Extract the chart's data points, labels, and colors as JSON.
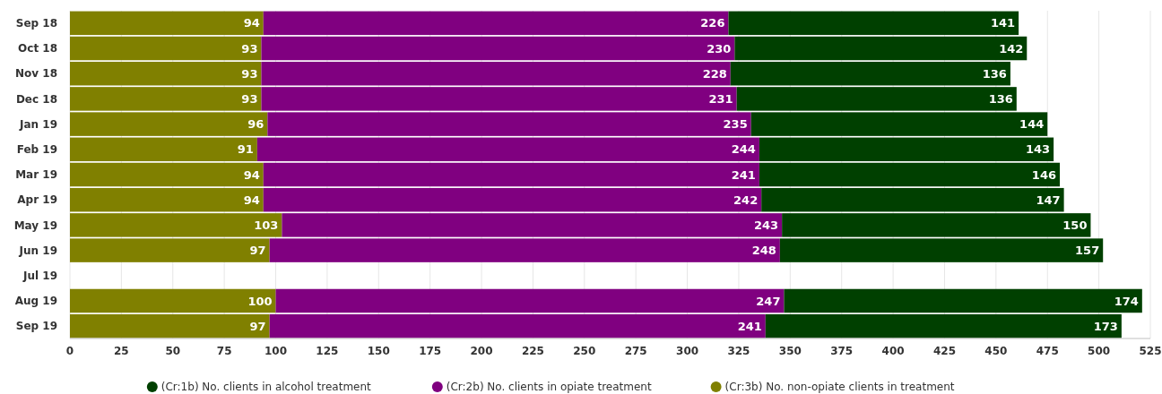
{
  "chart_data": {
    "type": "bar",
    "orientation": "horizontal",
    "stacked": true,
    "data_labels": true,
    "grid": "x",
    "legend": "bottom",
    "categories": [
      "Sep 18",
      "Oct 18",
      "Nov 18",
      "Dec 18",
      "Jan 19",
      "Feb 19",
      "Mar 19",
      "Apr 19",
      "May 19",
      "Jun 19",
      "Jul 19",
      "Aug 19",
      "Sep 19"
    ],
    "xlim": [
      0,
      525
    ],
    "xticks": [
      0,
      25,
      50,
      75,
      100,
      125,
      150,
      175,
      200,
      225,
      250,
      275,
      300,
      325,
      350,
      375,
      400,
      425,
      450,
      475,
      500,
      525
    ],
    "series": [
      {
        "name": "(Cr:3b) No. non-opiate clients in treatment",
        "color": "#808000",
        "values": [
          94,
          93,
          93,
          93,
          96,
          91,
          94,
          94,
          103,
          97,
          null,
          100,
          97
        ]
      },
      {
        "name": "(Cr:2b) No. clients in opiate treatment",
        "color": "#800080",
        "values": [
          226,
          230,
          228,
          231,
          235,
          244,
          241,
          242,
          243,
          248,
          null,
          247,
          241
        ]
      },
      {
        "name": "(Cr:1b) No. clients in alcohol treatment",
        "color": "#004000",
        "values": [
          141,
          142,
          136,
          136,
          144,
          143,
          146,
          147,
          150,
          157,
          null,
          174,
          173
        ]
      }
    ]
  }
}
